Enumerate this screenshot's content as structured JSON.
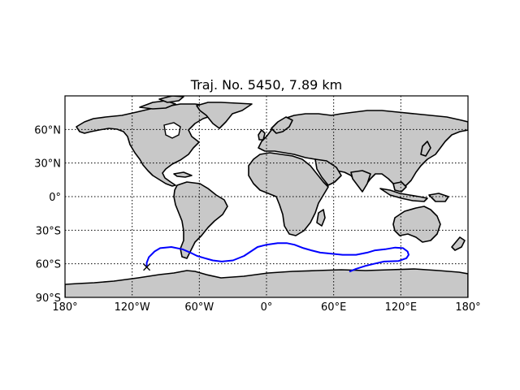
{
  "figure": {
    "title": "Traj. No. 5450, 7.89 km"
  },
  "map": {
    "projection": "cylindrical (equirectangular)",
    "lon_range": [
      -180,
      180
    ],
    "lat_range": [
      -90,
      90
    ],
    "land_color": "#c8c8c8",
    "coastline_color": "#000000",
    "graticule": "dotted",
    "lon_tick_labels": [
      {
        "lon": -180,
        "label": "180°"
      },
      {
        "lon": -120,
        "label": "120°W"
      },
      {
        "lon": -60,
        "label": "60°W"
      },
      {
        "lon": 0,
        "label": "0°"
      },
      {
        "lon": 60,
        "label": "60°E"
      },
      {
        "lon": 120,
        "label": "120°E"
      },
      {
        "lon": 180,
        "label": "180°"
      }
    ],
    "lat_tick_labels": [
      {
        "lat": 60,
        "label": "60°N"
      },
      {
        "lat": 30,
        "label": "30°N"
      },
      {
        "lat": 0,
        "label": "0°"
      },
      {
        "lat": -30,
        "label": "30°S"
      },
      {
        "lat": -60,
        "label": "60°S"
      },
      {
        "lat": -90,
        "label": "90°S"
      }
    ]
  },
  "trajectory": {
    "color": "#0000ff",
    "start_marker": "x",
    "start": {
      "lon": -107,
      "lat": -63
    },
    "points": [
      [
        -107,
        -63
      ],
      [
        -107,
        -59
      ],
      [
        -105,
        -54
      ],
      [
        -100,
        -49
      ],
      [
        -95,
        -46
      ],
      [
        -85,
        -45
      ],
      [
        -75,
        -47
      ],
      [
        -68,
        -50
      ],
      [
        -62,
        -53
      ],
      [
        -55,
        -55
      ],
      [
        -48,
        -57
      ],
      [
        -40,
        -58
      ],
      [
        -30,
        -57
      ],
      [
        -20,
        -53
      ],
      [
        -8,
        -45
      ],
      [
        0,
        -43
      ],
      [
        10,
        -41.5
      ],
      [
        18,
        -41.5
      ],
      [
        25,
        -43
      ],
      [
        33,
        -46
      ],
      [
        40,
        -48
      ],
      [
        48,
        -50
      ],
      [
        58,
        -51
      ],
      [
        68,
        -52
      ],
      [
        80,
        -52
      ],
      [
        90,
        -50
      ],
      [
        97,
        -48
      ],
      [
        106,
        -47
      ],
      [
        115,
        -45.5
      ],
      [
        122,
        -46
      ],
      [
        126,
        -49
      ],
      [
        127,
        -52
      ],
      [
        125,
        -55
      ],
      [
        118,
        -57.5
      ],
      [
        105,
        -58
      ],
      [
        96,
        -60
      ],
      [
        88,
        -62
      ],
      [
        80,
        -64.5
      ],
      [
        74,
        -67
      ]
    ]
  }
}
